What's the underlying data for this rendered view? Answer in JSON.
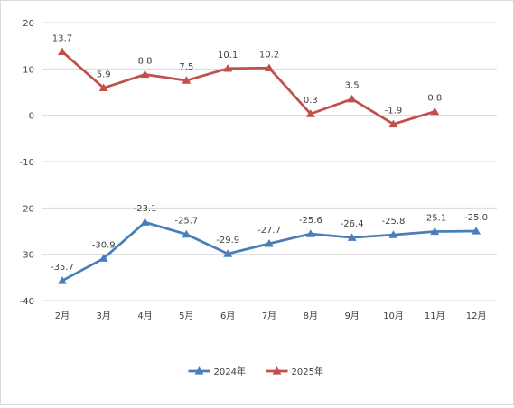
{
  "chart_data": {
    "type": "line",
    "categories": [
      "2月",
      "3月",
      "4月",
      "5月",
      "6月",
      "7月",
      "8月",
      "9月",
      "10月",
      "11月",
      "12月"
    ],
    "series": [
      {
        "name": "2024年",
        "color": "#4a7ebb",
        "marker": "triangle",
        "values": [
          -35.7,
          -30.9,
          -23.1,
          -25.7,
          -29.9,
          -27.7,
          -25.6,
          -26.4,
          -25.8,
          -25.1,
          -25.0
        ],
        "labels": [
          "-35.7",
          "-30.9",
          "-23.1",
          "-25.7",
          "-29.9",
          "-27.7",
          "-25.6",
          "-26.4",
          "-25.8",
          "-25.1",
          "-25.0"
        ]
      },
      {
        "name": "2025年",
        "color": "#c0504d",
        "marker": "triangle",
        "values": [
          13.7,
          5.9,
          8.8,
          7.5,
          10.1,
          10.2,
          0.3,
          3.5,
          -1.9,
          0.8,
          null
        ],
        "labels": [
          "13.7",
          "5.9",
          "8.8",
          "7.5",
          "10.1",
          "10.2",
          "0.3",
          "3.5",
          "-1.9",
          "0.8",
          null
        ]
      }
    ],
    "y_ticks": [
      "20",
      "10",
      "0",
      "-10",
      "-20",
      "-30",
      "-40"
    ],
    "y_tick_values": [
      20,
      10,
      0,
      -10,
      -20,
      -30,
      -40
    ],
    "ylim": [
      -40,
      20
    ],
    "grid": true,
    "legend_position": "bottom"
  }
}
